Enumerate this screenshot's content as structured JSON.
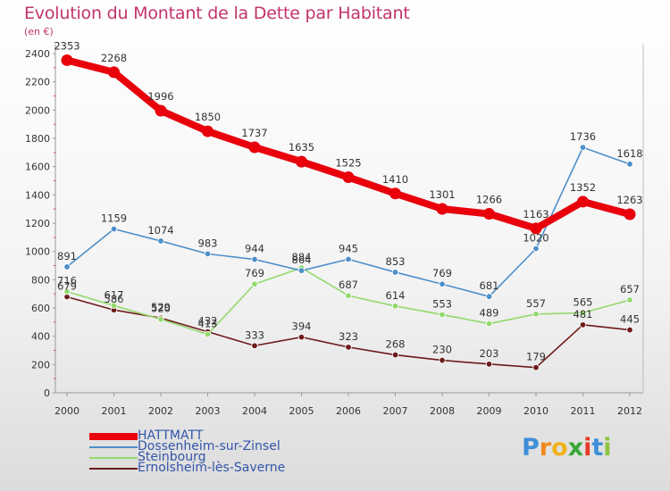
{
  "chart_data": {
    "type": "line",
    "title": "Evolution du Montant de la Dette par Habitant",
    "subtitle": "(en €)",
    "xlabel": "",
    "ylabel": "",
    "ylim": [
      0,
      2400
    ],
    "y_ticks": [
      0,
      200,
      400,
      600,
      800,
      1000,
      1200,
      1400,
      1600,
      1800,
      2000,
      2200,
      2400
    ],
    "x": [
      "2000",
      "2001",
      "2002",
      "2003",
      "2004",
      "2005",
      "2006",
      "2007",
      "2008",
      "2009",
      "2010",
      "2011",
      "2012"
    ],
    "grid": false,
    "legend_position": "bottom-left",
    "series": [
      {
        "name": "HATTMATT",
        "color": "#e8000b",
        "thick": true,
        "values": [
          2353,
          2268,
          1996,
          1850,
          1737,
          1635,
          1525,
          1410,
          1301,
          1266,
          1163,
          1352,
          1263
        ]
      },
      {
        "name": "Dossenheim-sur-Zinsel",
        "color": "#4d8fc9",
        "thick": false,
        "values": [
          891,
          1159,
          1074,
          983,
          944,
          864,
          945,
          853,
          769,
          681,
          1020,
          1736,
          1618
        ]
      },
      {
        "name": "Steinbourg",
        "color": "#93d96d",
        "thick": false,
        "values": [
          716,
          617,
          520,
          413,
          769,
          884,
          687,
          614,
          553,
          489,
          557,
          565,
          657
        ]
      },
      {
        "name": "Ernolsheim-lès-Saverne",
        "color": "#6e1a1a",
        "thick": false,
        "values": [
          679,
          586,
          529,
          432,
          333,
          394,
          323,
          268,
          230,
          203,
          179,
          481,
          445
        ]
      }
    ]
  },
  "brand": {
    "logo_letters": [
      "P",
      "r",
      "o",
      "x",
      "i",
      "t",
      "i"
    ],
    "logo_colors": [
      "#3d8fd8",
      "#f08a1c",
      "#f2b21c",
      "#38a838",
      "#e83a2a",
      "#3d8fd8",
      "#8cc63f"
    ]
  }
}
